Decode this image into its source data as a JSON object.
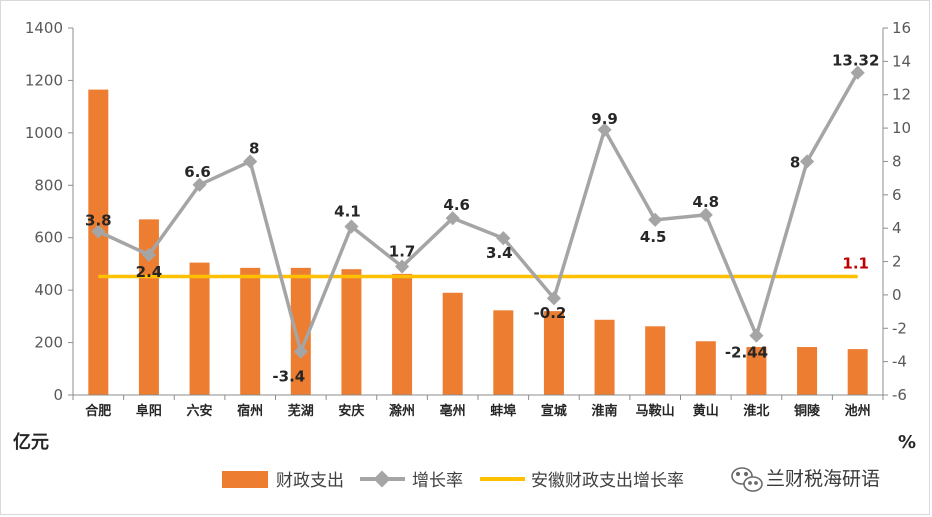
{
  "chart_data": {
    "type": "bar",
    "categories": [
      "合肥",
      "阜阳",
      "六安",
      "宿州",
      "芜湖",
      "安庆",
      "滁州",
      "亳州",
      "蚌埠",
      "宣城",
      "淮南",
      "马鞍山",
      "黄山",
      "淮北",
      "铜陵",
      "池州"
    ],
    "series": [
      {
        "name": "财政支出",
        "type": "bar",
        "axis": "left",
        "color": "#ED7D31",
        "values": [
          1165,
          670,
          505,
          485,
          485,
          480,
          462,
          390,
          323,
          320,
          287,
          262,
          205,
          183,
          183,
          175
        ]
      },
      {
        "name": "增长率",
        "type": "line",
        "axis": "right",
        "color": "#A5A5A5",
        "values": [
          3.8,
          2.4,
          6.6,
          8,
          -3.4,
          4.1,
          1.7,
          4.6,
          3.4,
          -0.2,
          9.9,
          4.5,
          4.8,
          -2.44,
          8,
          13.32
        ],
        "labels": [
          "3.8",
          "2.4",
          "6.6",
          "8",
          "-3.4",
          "4.1",
          "1.7",
          "4.6",
          "3.4",
          "-0.2",
          "9.9",
          "4.5",
          "4.8",
          "-2.44",
          "8",
          "13.32"
        ]
      },
      {
        "name": "安徽财政支出增长率",
        "type": "reference_line",
        "axis": "right",
        "color": "#FFC000",
        "value": 1.1,
        "label": "1.1",
        "label_color": "#C00000"
      }
    ],
    "y_left": {
      "unit": "亿元",
      "ylim": [
        0,
        1400
      ],
      "ticks": [
        0,
        200,
        400,
        600,
        800,
        1000,
        1200,
        1400
      ]
    },
    "y_right": {
      "unit": "%",
      "ylim": [
        -6,
        16
      ],
      "ticks": [
        -6,
        -4,
        -2,
        0,
        2,
        4,
        6,
        8,
        10,
        12,
        14,
        16
      ]
    },
    "grid": false,
    "legend_position": "bottom"
  },
  "watermark": {
    "text": "兰财税海研语"
  }
}
